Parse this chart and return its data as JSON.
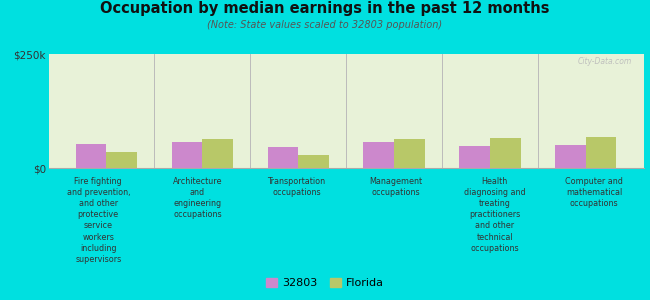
{
  "title": "Occupation by median earnings in the past 12 months",
  "subtitle": "(Note: State values scaled to 32803 population)",
  "background_color": "#00e0e0",
  "plot_bg_color": "#e8f2d8",
  "categories": [
    "Fire fighting\nand prevention,\nand other\nprotective\nservice\nworkers\nincluding\nsupervisors",
    "Architecture\nand\nengineering\noccupations",
    "Transportation\noccupations",
    "Management\noccupations",
    "Health\ndiagnosing and\ntreating\npractitioners\nand other\ntechnical\noccupations",
    "Computer and\nmathematical\noccupations"
  ],
  "values_32803": [
    52000,
    56000,
    45000,
    57000,
    48000,
    50000
  ],
  "values_florida": [
    34000,
    63000,
    29000,
    63000,
    66000,
    68000
  ],
  "color_32803": "#cc88cc",
  "color_florida": "#b8c868",
  "ylim": [
    0,
    250000
  ],
  "yticks": [
    0,
    250000
  ],
  "ytick_labels": [
    "$0",
    "$250k"
  ],
  "legend_labels": [
    "32803",
    "Florida"
  ],
  "bar_width": 0.32
}
